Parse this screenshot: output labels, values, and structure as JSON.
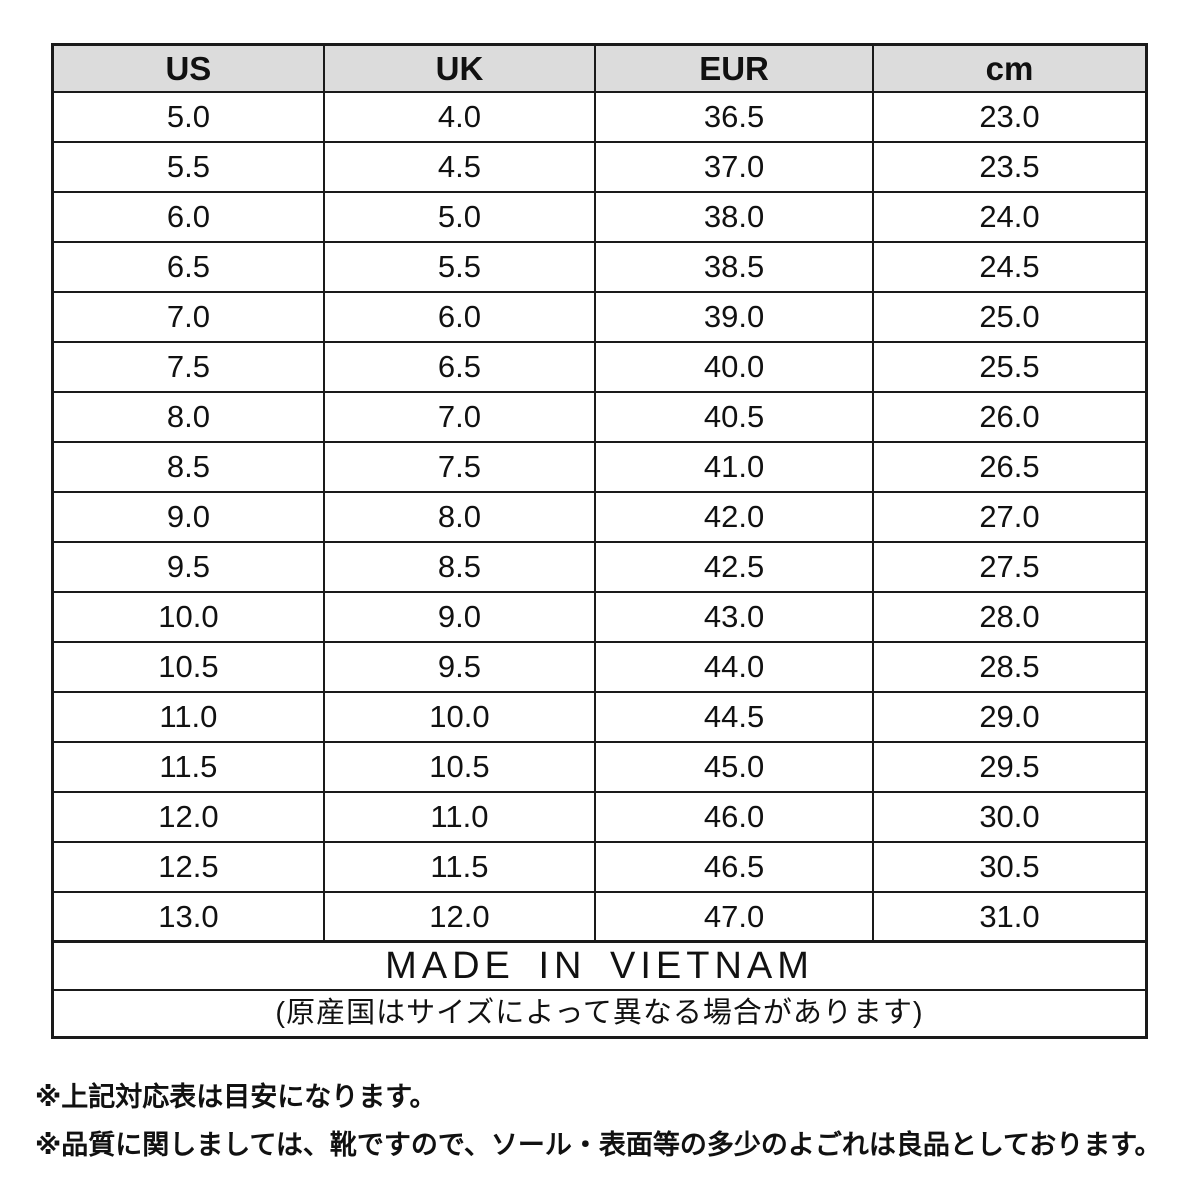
{
  "table": {
    "headers": [
      "US",
      "UK",
      "EUR",
      "cm"
    ],
    "rows": [
      [
        "5.0",
        "4.0",
        "36.5",
        "23.0"
      ],
      [
        "5.5",
        "4.5",
        "37.0",
        "23.5"
      ],
      [
        "6.0",
        "5.0",
        "38.0",
        "24.0"
      ],
      [
        "6.5",
        "5.5",
        "38.5",
        "24.5"
      ],
      [
        "7.0",
        "6.0",
        "39.0",
        "25.0"
      ],
      [
        "7.5",
        "6.5",
        "40.0",
        "25.5"
      ],
      [
        "8.0",
        "7.0",
        "40.5",
        "26.0"
      ],
      [
        "8.5",
        "7.5",
        "41.0",
        "26.5"
      ],
      [
        "9.0",
        "8.0",
        "42.0",
        "27.0"
      ],
      [
        "9.5",
        "8.5",
        "42.5",
        "27.5"
      ],
      [
        "10.0",
        "9.0",
        "43.0",
        "28.0"
      ],
      [
        "10.5",
        "9.5",
        "44.0",
        "28.5"
      ],
      [
        "11.0",
        "10.0",
        "44.5",
        "29.0"
      ],
      [
        "11.5",
        "10.5",
        "45.0",
        "29.5"
      ],
      [
        "12.0",
        "11.0",
        "46.0",
        "30.0"
      ],
      [
        "12.5",
        "11.5",
        "46.5",
        "30.5"
      ],
      [
        "13.0",
        "12.0",
        "47.0",
        "31.0"
      ]
    ],
    "origin_label": "MADE IN VIETNAM",
    "origin_note": "(原産国はサイズによって異なる場合があります)"
  },
  "notes": [
    "※上記対応表は目安になります。",
    "※品質に関しましては、靴ですので、ソール・表面等の多少のよごれは良品としております。"
  ],
  "colors": {
    "header_bg": "#dcdcdc",
    "border": "#1a1a1a",
    "text": "#111111"
  }
}
